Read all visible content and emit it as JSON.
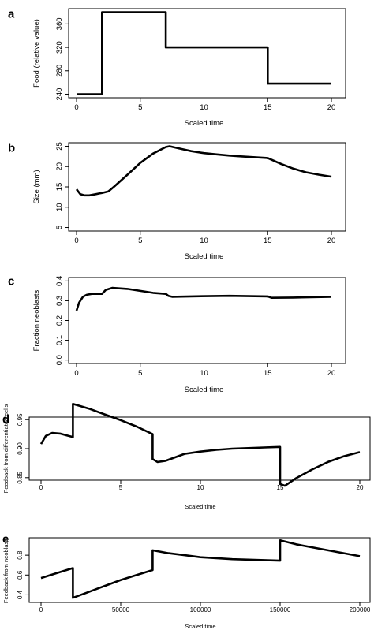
{
  "chart_data": [
    {
      "panel": "a",
      "type": "line",
      "xlabel": "Scaled time",
      "ylabel": "Food (relative value)",
      "xlim": [
        0,
        20
      ],
      "ylim": [
        240,
        380
      ],
      "xticks": [
        0,
        5,
        10,
        15,
        20
      ],
      "yticks": [
        240,
        280,
        320,
        360
      ],
      "x": [
        0,
        2,
        2,
        7,
        7,
        15,
        15,
        20
      ],
      "y": [
        240,
        240,
        380,
        380,
        320,
        320,
        258,
        258
      ]
    },
    {
      "panel": "b",
      "type": "line",
      "xlabel": "Scaled time",
      "ylabel": "Size (mm)",
      "xlim": [
        0,
        20
      ],
      "ylim": [
        5,
        25
      ],
      "xticks": [
        0,
        5,
        10,
        15,
        20
      ],
      "yticks": [
        5,
        10,
        15,
        20,
        25
      ],
      "x": [
        0,
        0.3,
        0.6,
        1,
        1.5,
        2,
        2.5,
        3,
        4,
        5,
        6,
        7,
        7.3,
        8,
        9,
        10,
        11,
        12,
        13,
        14,
        15,
        16,
        17,
        18,
        19,
        20
      ],
      "y": [
        14.4,
        13.2,
        12.9,
        12.9,
        13.2,
        13.5,
        13.9,
        15.2,
        18.0,
        20.9,
        23.2,
        24.8,
        25.0,
        24.5,
        23.8,
        23.3,
        23.0,
        22.7,
        22.5,
        22.3,
        22.1,
        20.7,
        19.5,
        18.6,
        18.0,
        17.5
      ]
    },
    {
      "panel": "c",
      "type": "line",
      "xlabel": "Scaled time",
      "ylabel": "Fraction neoblasts",
      "xlim": [
        0,
        20
      ],
      "ylim": [
        0,
        0.4
      ],
      "xticks": [
        0,
        5,
        10,
        15,
        20
      ],
      "yticks": [
        0.0,
        0.1,
        0.2,
        0.3,
        0.4
      ],
      "x": [
        0,
        0.2,
        0.5,
        0.8,
        1.2,
        2,
        2.3,
        2.8,
        4,
        5,
        6,
        7,
        7.2,
        7.5,
        9,
        12,
        15,
        15.3,
        17,
        20
      ],
      "y": [
        0.25,
        0.29,
        0.32,
        0.33,
        0.335,
        0.335,
        0.355,
        0.365,
        0.36,
        0.35,
        0.34,
        0.335,
        0.325,
        0.32,
        0.322,
        0.325,
        0.322,
        0.315,
        0.316,
        0.32
      ]
    },
    {
      "panel": "d",
      "type": "line",
      "xlabel": "Scaled time",
      "ylabel": "Feedback from differentiated cells",
      "xlim": [
        0,
        20
      ],
      "ylim": [
        0.85,
        0.95
      ],
      "xticks": [
        0,
        5,
        10,
        15,
        20
      ],
      "yticks": [
        0.85,
        0.9,
        0.95
      ],
      "x": [
        0,
        0.3,
        0.7,
        1.2,
        1.6,
        2,
        2,
        3,
        4,
        5,
        6,
        7,
        7,
        7.3,
        7.8,
        9,
        10,
        11,
        12,
        13,
        14,
        15,
        15,
        15.3,
        16,
        17,
        18,
        19,
        20
      ],
      "y": [
        0.908,
        0.922,
        0.927,
        0.926,
        0.923,
        0.92,
        0.977,
        0.969,
        0.959,
        0.949,
        0.938,
        0.925,
        0.882,
        0.877,
        0.879,
        0.891,
        0.895,
        0.898,
        0.9,
        0.901,
        0.902,
        0.903,
        0.839,
        0.836,
        0.849,
        0.864,
        0.877,
        0.887,
        0.894
      ]
    },
    {
      "panel": "e",
      "type": "line",
      "xlabel": "Scaled time",
      "ylabel": "Feedback from neoblasts",
      "xlim": [
        0,
        200000
      ],
      "ylim": [
        0.35,
        0.95
      ],
      "xticks": [
        0,
        50000,
        100000,
        150000,
        200000
      ],
      "yticks": [
        0.4,
        0.6,
        0.8
      ],
      "x": [
        0,
        10000,
        20000,
        20000,
        30000,
        40000,
        50000,
        60000,
        70000,
        70000,
        80000,
        90000,
        100000,
        110000,
        120000,
        130000,
        140000,
        150000,
        150000,
        160000,
        170000,
        180000,
        190000,
        200000
      ],
      "y": [
        0.57,
        0.62,
        0.67,
        0.37,
        0.43,
        0.49,
        0.55,
        0.6,
        0.65,
        0.85,
        0.82,
        0.8,
        0.78,
        0.77,
        0.76,
        0.755,
        0.75,
        0.745,
        0.95,
        0.91,
        0.88,
        0.85,
        0.82,
        0.79
      ]
    }
  ]
}
